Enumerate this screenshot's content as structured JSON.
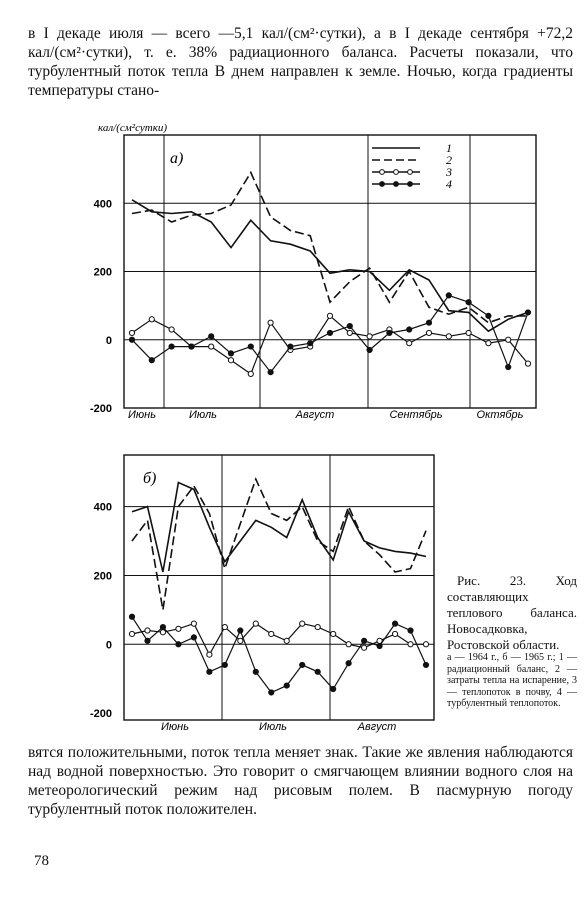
{
  "text": {
    "para1": "в I декаде июля — всего —5,1 кал/(см²·сутки), а в I декаде сентября +72,2 кал/(см²·сутки), т. е. 38% радиационного баланса. Расчеты показали, что турбулентный поток тепла B днем направлен к земле. Ночью, когда градиенты температуры стано-",
    "para2": "вятся положительными, поток тепла меняет знак. Такие же явления наблюдаются над водной поверхностью. Это говорит о смягчающем влиянии водного слоя на метеорологический режим над рисовым полем. В пасмурную погоду турбулентный поток положителен.",
    "page_number": "78",
    "caption_title": "Рис. 23. Ход составляющих теплового баланса. Новосадковка, Ростовской области.",
    "caption_legend": "а — 1964 г., б — 1965 г.; 1 — радиационный баланс, 2 — затраты тепла на испарение, 3 — теплопоток в почву, 4 — турбулентный теплопоток."
  },
  "chart_data": [
    {
      "type": "line",
      "panel_label": "а)",
      "ylabel": "кал/(см²сутки)",
      "ylim": [
        -200,
        600
      ],
      "yticks": [
        "400",
        "200",
        "0",
        "-200"
      ],
      "months": [
        "Июнь",
        "Июль",
        "Август",
        "Сентябрь",
        "Октябрь"
      ],
      "legend": [
        "1",
        "2",
        "3",
        "4"
      ],
      "series": [
        {
          "name": "1",
          "style": "solid",
          "points": [
            [
              0.0,
              410
            ],
            [
              0.5,
              375
            ],
            [
              1.0,
              370
            ],
            [
              1.5,
              375
            ],
            [
              2.0,
              345
            ],
            [
              2.5,
              270
            ],
            [
              3.0,
              350
            ],
            [
              3.5,
              290
            ],
            [
              4.0,
              280
            ],
            [
              4.5,
              260
            ],
            [
              5.0,
              195
            ],
            [
              5.5,
              205
            ],
            [
              6.0,
              200
            ],
            [
              6.5,
              145
            ],
            [
              7.0,
              205
            ],
            [
              7.5,
              175
            ],
            [
              8.0,
              85
            ],
            [
              8.5,
              80
            ],
            [
              9.0,
              25
            ],
            [
              9.5,
              60
            ],
            [
              10.0,
              80
            ]
          ]
        },
        {
          "name": "2",
          "style": "dashed",
          "points": [
            [
              0.0,
              370
            ],
            [
              0.5,
              380
            ],
            [
              1.0,
              345
            ],
            [
              1.5,
              365
            ],
            [
              2.0,
              370
            ],
            [
              2.5,
              395
            ],
            [
              3.0,
              490
            ],
            [
              3.5,
              360
            ],
            [
              4.0,
              320
            ],
            [
              4.5,
              305
            ],
            [
              5.0,
              110
            ],
            [
              5.5,
              170
            ],
            [
              6.0,
              210
            ],
            [
              6.5,
              110
            ],
            [
              7.0,
              200
            ],
            [
              7.5,
              95
            ],
            [
              8.0,
              75
            ],
            [
              8.5,
              95
            ],
            [
              9.0,
              50
            ],
            [
              9.5,
              70
            ],
            [
              10.0,
              70
            ]
          ]
        },
        {
          "name": "3",
          "style": "open-circles",
          "points": [
            [
              0.0,
              20
            ],
            [
              0.5,
              60
            ],
            [
              1.0,
              30
            ],
            [
              1.5,
              -20
            ],
            [
              2.0,
              -20
            ],
            [
              2.5,
              -60
            ],
            [
              3.0,
              -100
            ],
            [
              3.5,
              50
            ],
            [
              4.0,
              -30
            ],
            [
              4.5,
              -20
            ],
            [
              5.0,
              70
            ],
            [
              5.5,
              20
            ],
            [
              6.0,
              10
            ],
            [
              6.5,
              30
            ],
            [
              7.0,
              -10
            ],
            [
              7.5,
              20
            ],
            [
              8.0,
              10
            ],
            [
              8.5,
              20
            ],
            [
              9.0,
              -10
            ],
            [
              9.5,
              0
            ],
            [
              10.0,
              -70
            ]
          ]
        },
        {
          "name": "4",
          "style": "filled-circles",
          "points": [
            [
              0.0,
              0
            ],
            [
              0.5,
              -60
            ],
            [
              1.0,
              -20
            ],
            [
              1.5,
              -20
            ],
            [
              2.0,
              10
            ],
            [
              2.5,
              -40
            ],
            [
              3.0,
              -20
            ],
            [
              3.5,
              -95
            ],
            [
              4.0,
              -20
            ],
            [
              4.5,
              -10
            ],
            [
              5.0,
              20
            ],
            [
              5.5,
              40
            ],
            [
              6.0,
              -30
            ],
            [
              6.5,
              20
            ],
            [
              7.0,
              30
            ],
            [
              7.5,
              50
            ],
            [
              8.0,
              130
            ],
            [
              8.5,
              110
            ],
            [
              9.0,
              70
            ],
            [
              9.5,
              -80
            ],
            [
              10.0,
              80
            ]
          ]
        }
      ]
    },
    {
      "type": "line",
      "panel_label": "б)",
      "ylim": [
        -200,
        600
      ],
      "yticks": [
        "400",
        "200",
        "0",
        "-200"
      ],
      "months": [
        "Июнь",
        "Июль",
        "Август"
      ],
      "series": [
        {
          "name": "1",
          "style": "solid",
          "points": [
            [
              0.0,
              385
            ],
            [
              0.5,
              400
            ],
            [
              1.0,
              210
            ],
            [
              1.5,
              470
            ],
            [
              2.0,
              450
            ],
            [
              2.5,
              340
            ],
            [
              3.0,
              240
            ],
            [
              3.5,
              300
            ],
            [
              4.0,
              360
            ],
            [
              4.5,
              340
            ],
            [
              5.0,
              310
            ],
            [
              5.5,
              420
            ],
            [
              6.0,
              310
            ],
            [
              6.5,
              245
            ],
            [
              7.0,
              385
            ],
            [
              7.5,
              300
            ],
            [
              8.0,
              280
            ],
            [
              8.5,
              270
            ],
            [
              9.0,
              265
            ],
            [
              9.5,
              255
            ]
          ]
        },
        {
          "name": "2",
          "style": "dashed",
          "points": [
            [
              0.0,
              300
            ],
            [
              0.5,
              360
            ],
            [
              1.0,
              100
            ],
            [
              1.5,
              400
            ],
            [
              2.0,
              460
            ],
            [
              2.5,
              380
            ],
            [
              3.0,
              220
            ],
            [
              3.5,
              350
            ],
            [
              4.0,
              480
            ],
            [
              4.5,
              380
            ],
            [
              5.0,
              360
            ],
            [
              5.5,
              400
            ],
            [
              6.0,
              300
            ],
            [
              6.5,
              270
            ],
            [
              7.0,
              400
            ],
            [
              7.5,
              300
            ],
            [
              8.0,
              260
            ],
            [
              8.5,
              210
            ],
            [
              9.0,
              220
            ],
            [
              9.5,
              330
            ]
          ]
        },
        {
          "name": "3",
          "style": "open-circles",
          "points": [
            [
              0.0,
              30
            ],
            [
              0.5,
              40
            ],
            [
              1.0,
              35
            ],
            [
              1.5,
              45
            ],
            [
              2.0,
              60
            ],
            [
              2.5,
              -30
            ],
            [
              3.0,
              50
            ],
            [
              3.5,
              10
            ],
            [
              4.0,
              60
            ],
            [
              4.5,
              30
            ],
            [
              5.0,
              10
            ],
            [
              5.5,
              60
            ],
            [
              6.0,
              50
            ],
            [
              6.5,
              30
            ],
            [
              7.0,
              0
            ],
            [
              7.5,
              -10
            ],
            [
              8.0,
              10
            ],
            [
              8.5,
              30
            ],
            [
              9.0,
              0
            ],
            [
              9.5,
              0
            ]
          ]
        },
        {
          "name": "4",
          "style": "filled-circles",
          "points": [
            [
              0.0,
              80
            ],
            [
              0.5,
              10
            ],
            [
              1.0,
              50
            ],
            [
              1.5,
              0
            ],
            [
              2.0,
              20
            ],
            [
              2.5,
              -80
            ],
            [
              3.0,
              -60
            ],
            [
              3.5,
              40
            ],
            [
              4.0,
              -80
            ],
            [
              4.5,
              -140
            ],
            [
              5.0,
              -120
            ],
            [
              5.5,
              -60
            ],
            [
              6.0,
              -80
            ],
            [
              6.5,
              -130
            ],
            [
              7.0,
              -55
            ],
            [
              7.5,
              10
            ],
            [
              8.0,
              -5
            ],
            [
              8.5,
              60
            ],
            [
              9.0,
              40
            ],
            [
              9.5,
              -60
            ]
          ]
        }
      ]
    }
  ]
}
